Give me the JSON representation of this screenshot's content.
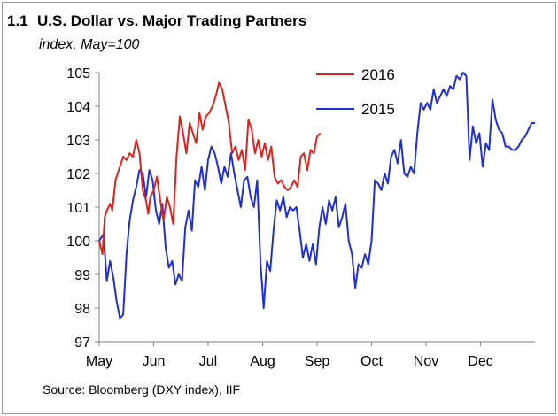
{
  "figure_number": "1.1",
  "source": "Source:  Bloomberg (DXY index), IIF",
  "chart_data": {
    "type": "line",
    "title": "U.S. Dollar vs. Major Trading Partners",
    "subtitle": "index, May=100",
    "xlabel": "",
    "ylabel": "",
    "x_ticks": [
      "May",
      "Jun",
      "Jul",
      "Aug",
      "Sep",
      "Oct",
      "Nov",
      "Dec"
    ],
    "y_ticks": [
      97,
      98,
      99,
      100,
      101,
      102,
      103,
      104,
      105
    ],
    "ylim": [
      97,
      105
    ],
    "xlim": [
      0,
      8
    ],
    "grid": false,
    "legend_position": "top-center",
    "series": [
      {
        "name": "2016",
        "color": "#e3211c",
        "x": [
          0,
          0.06,
          0.1,
          0.14,
          0.2,
          0.24,
          0.3,
          0.36,
          0.44,
          0.5,
          0.56,
          0.62,
          0.68,
          0.74,
          0.8,
          0.86,
          0.9,
          0.94,
          1.0,
          1.06,
          1.12,
          1.18,
          1.24,
          1.3,
          1.36,
          1.42,
          1.48,
          1.54,
          1.6,
          1.66,
          1.72,
          1.78,
          1.84,
          1.9,
          1.96,
          2.02,
          2.08,
          2.14,
          2.2,
          2.26,
          2.32,
          2.38,
          2.44,
          2.5,
          2.56,
          2.62,
          2.68,
          2.74,
          2.8,
          2.86,
          2.92,
          2.98,
          3.04,
          3.1,
          3.16,
          3.22,
          3.28,
          3.34,
          3.4,
          3.46,
          3.52,
          3.58,
          3.64,
          3.7,
          3.76,
          3.82,
          3.88,
          3.94,
          4.0,
          4.06
        ],
        "values": [
          100.0,
          99.6,
          100.7,
          100.9,
          101.1,
          100.9,
          101.8,
          102.1,
          102.5,
          102.4,
          102.6,
          102.5,
          103.0,
          102.6,
          101.5,
          101.2,
          100.8,
          101.3,
          101.5,
          101.9,
          101.2,
          100.6,
          101.3,
          101.0,
          100.5,
          102.5,
          103.7,
          103.2,
          102.6,
          103.5,
          103.2,
          102.9,
          103.8,
          103.3,
          103.7,
          103.8,
          104.0,
          104.3,
          104.7,
          104.5,
          104.0,
          103.5,
          102.6,
          102.8,
          102.4,
          102.7,
          102.1,
          103.6,
          103.3,
          102.6,
          103.0,
          102.5,
          102.9,
          102.4,
          102.8,
          101.9,
          101.7,
          101.8,
          101.6,
          101.5,
          101.6,
          101.8,
          101.6,
          102.5,
          102.6,
          102.1,
          102.7,
          102.6,
          103.1,
          103.2
        ]
      },
      {
        "name": "2015",
        "color": "#1f2ed8",
        "x": [
          0,
          0.08,
          0.14,
          0.2,
          0.26,
          0.32,
          0.38,
          0.44,
          0.5,
          0.56,
          0.62,
          0.68,
          0.74,
          0.8,
          0.86,
          0.92,
          0.98,
          1.04,
          1.1,
          1.16,
          1.22,
          1.28,
          1.34,
          1.4,
          1.46,
          1.52,
          1.58,
          1.64,
          1.7,
          1.76,
          1.82,
          1.88,
          1.94,
          2.0,
          2.06,
          2.12,
          2.18,
          2.24,
          2.3,
          2.36,
          2.42,
          2.48,
          2.54,
          2.6,
          2.66,
          2.72,
          2.78,
          2.84,
          2.9,
          2.96,
          3.02,
          3.08,
          3.14,
          3.2,
          3.26,
          3.32,
          3.38,
          3.44,
          3.5,
          3.56,
          3.62,
          3.68,
          3.74,
          3.8,
          3.86,
          3.92,
          3.98,
          4.04,
          4.1,
          4.16,
          4.22,
          4.28,
          4.34,
          4.4,
          4.46,
          4.52,
          4.58,
          4.64,
          4.7,
          4.76,
          4.82,
          4.88,
          4.94,
          5.0,
          5.06,
          5.12,
          5.18,
          5.24,
          5.3,
          5.36,
          5.42,
          5.48,
          5.54,
          5.6,
          5.66,
          5.72,
          5.78,
          5.84,
          5.9,
          5.96,
          6.02,
          6.08,
          6.14,
          6.2,
          6.26,
          6.32,
          6.38,
          6.44,
          6.5,
          6.56,
          6.62,
          6.68,
          6.74,
          6.8,
          6.86,
          6.92,
          6.98,
          7.04,
          7.1,
          7.16,
          7.22,
          7.28,
          7.34,
          7.4,
          7.46,
          7.52,
          7.58,
          7.64,
          7.7,
          7.76,
          7.82,
          7.88,
          7.94,
          8.0
        ],
        "values": [
          100.0,
          100.2,
          98.8,
          99.4,
          98.9,
          98.2,
          97.7,
          97.8,
          99.6,
          100.6,
          101.2,
          101.6,
          102.1,
          102.0,
          101.3,
          102.1,
          101.8,
          100.9,
          100.5,
          101.1,
          99.8,
          99.2,
          99.4,
          98.7,
          99.0,
          98.8,
          100.4,
          100.9,
          100.3,
          101.8,
          101.6,
          102.2,
          101.5,
          102.4,
          102.8,
          102.6,
          102.2,
          101.7,
          102.2,
          101.9,
          102.6,
          102.0,
          101.5,
          101.0,
          101.8,
          101.9,
          101.3,
          101.0,
          101.8,
          99.4,
          98.0,
          99.4,
          99.1,
          100.3,
          101.2,
          100.9,
          101.3,
          100.7,
          101.0,
          100.9,
          101.0,
          100.3,
          99.5,
          99.9,
          99.4,
          99.9,
          99.3,
          100.4,
          101.0,
          100.5,
          101.2,
          100.9,
          101.3,
          100.4,
          100.7,
          101.1,
          100.0,
          99.6,
          98.6,
          99.3,
          99.2,
          99.6,
          99.3,
          100.0,
          101.8,
          101.7,
          101.5,
          102.0,
          101.7,
          102.5,
          102.7,
          102.3,
          103.0,
          102.0,
          101.9,
          102.2,
          102.0,
          103.2,
          104.1,
          103.9,
          104.1,
          103.9,
          104.5,
          104.1,
          104.3,
          104.5,
          104.3,
          104.6,
          104.5,
          104.9,
          104.8,
          105.0,
          104.9,
          102.4,
          103.4,
          102.9,
          103.2,
          102.2,
          102.9,
          102.7,
          104.2,
          103.6,
          103.3,
          103.2,
          102.8,
          102.8,
          102.7,
          102.7,
          102.8,
          103.0,
          103.1,
          103.3,
          103.5,
          103.5
        ]
      }
    ]
  }
}
